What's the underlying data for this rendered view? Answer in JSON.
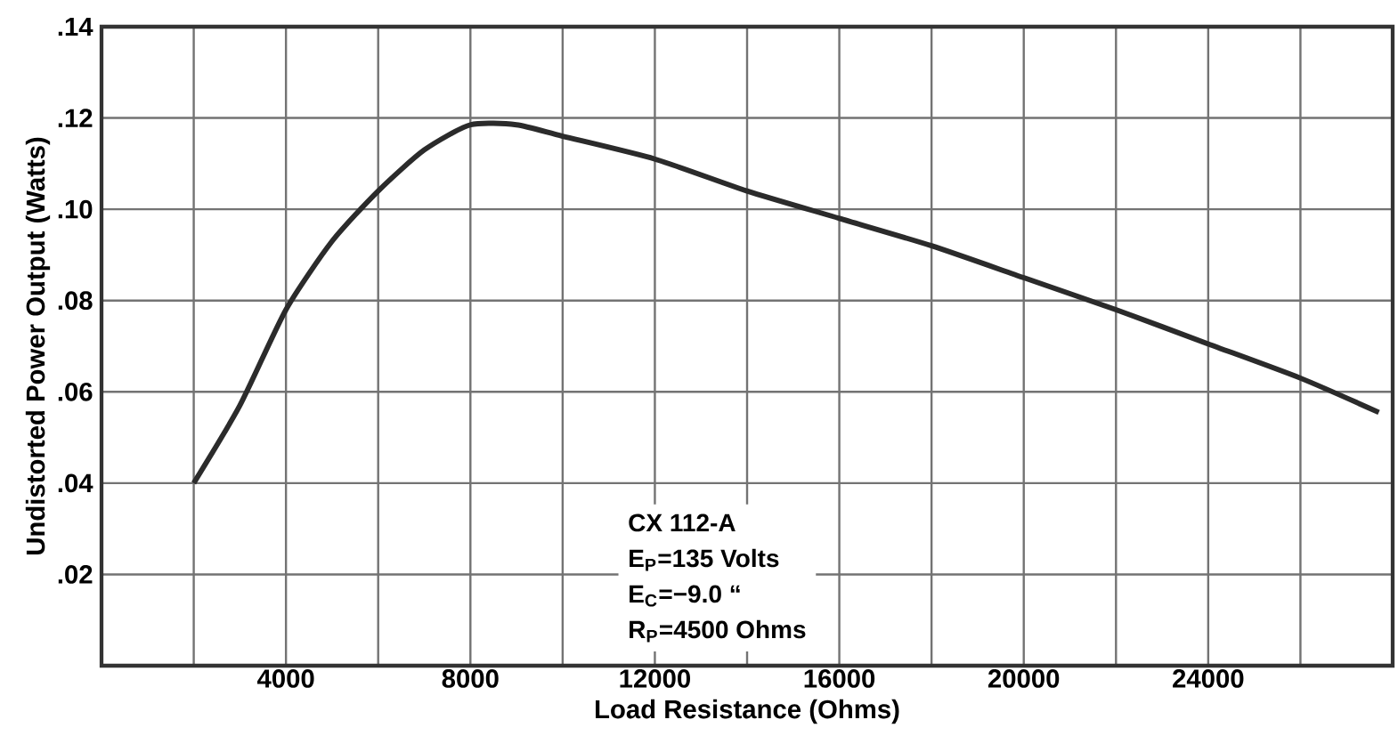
{
  "chart_data": {
    "type": "line",
    "xlabel": "Load Resistance (Ohms)",
    "ylabel": "Undistorted Power Output (Watts)",
    "x": [
      2000,
      3000,
      4000,
      5000,
      6000,
      7000,
      8000,
      9000,
      10000,
      12000,
      14000,
      16000,
      18000,
      20000,
      22000,
      24000,
      26000,
      27700
    ],
    "series": [
      {
        "color": "#2b2b2b",
        "values": [
          0.04,
          0.057,
          0.078,
          0.093,
          0.104,
          0.113,
          0.1185,
          0.1185,
          0.116,
          0.111,
          0.104,
          0.098,
          0.092,
          0.085,
          0.078,
          0.0705,
          0.063,
          0.0555
        ]
      }
    ],
    "xlim": [
      0,
      28000
    ],
    "ylim": [
      0,
      0.14
    ],
    "xticks": [
      {
        "value": 2000,
        "label": null
      },
      4000,
      {
        "value": 6000,
        "label": null
      },
      8000,
      {
        "value": 10000,
        "label": null
      },
      12000,
      {
        "value": 14000,
        "label": null
      },
      16000,
      {
        "value": 18000,
        "label": null
      },
      20000,
      {
        "value": 22000,
        "label": null
      },
      24000,
      {
        "value": 26000,
        "label": null
      }
    ],
    "yticks": [
      {
        "value": 0.02,
        "label": ".02"
      },
      {
        "value": 0.04,
        "label": ".04"
      },
      {
        "value": 0.06,
        "label": ".06"
      },
      {
        "value": 0.08,
        "label": ".08"
      },
      {
        "value": 0.1,
        "label": ".10"
      },
      {
        "value": 0.12,
        "label": ".12"
      },
      {
        "value": 0.14,
        "label": ".14"
      }
    ],
    "grid": true,
    "marker": "none",
    "line_style": "solid",
    "annotations": [
      "CX 112-A",
      "E$_{P}$=135 Volts",
      "E$_{C}$=−9.0 “",
      "R$_{P}$=4500 Ohms"
    ]
  }
}
